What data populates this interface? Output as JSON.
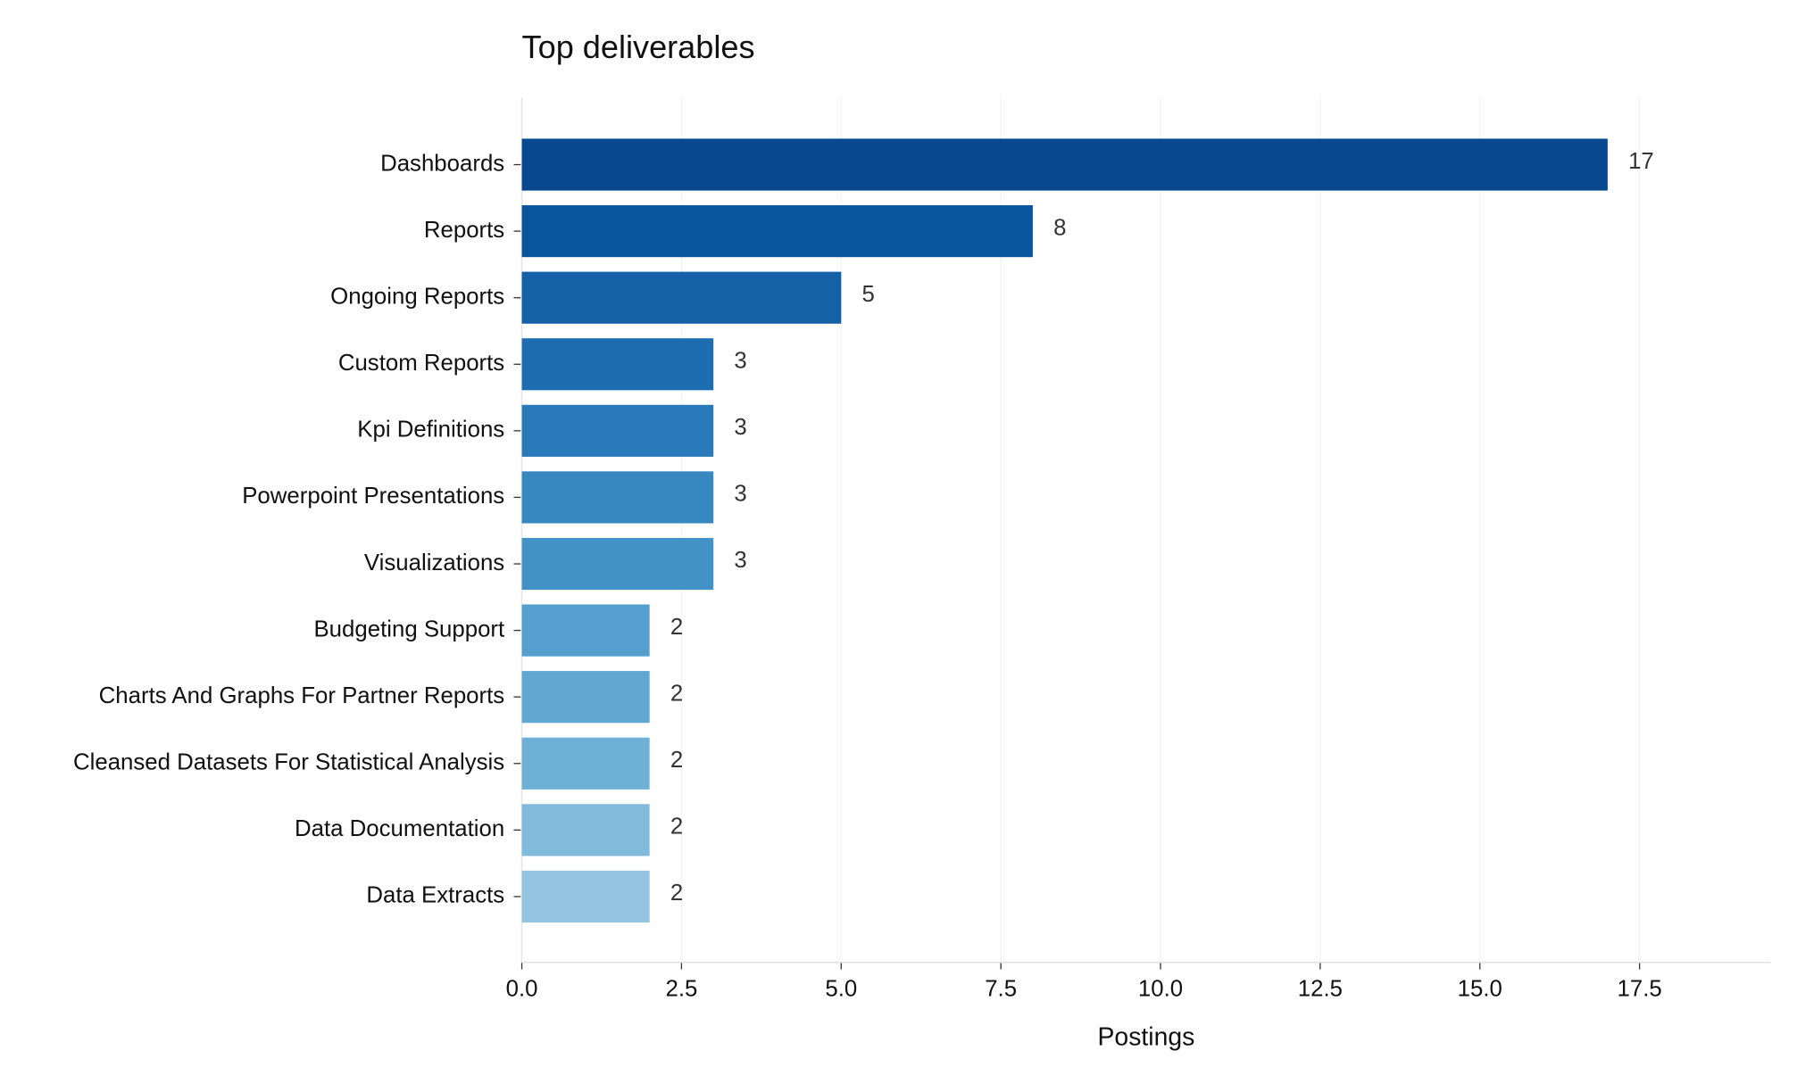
{
  "chart_data": {
    "type": "bar",
    "orientation": "horizontal",
    "title": "Top deliverables",
    "xlabel": "Postings",
    "categories": [
      "Dashboards",
      "Reports",
      "Ongoing Reports",
      "Custom Reports",
      "Kpi Definitions",
      "Powerpoint Presentations",
      "Visualizations",
      "Budgeting Support",
      "Charts And Graphs For Partner Reports",
      "Cleansed Datasets For Statistical Analysis",
      "Data Documentation",
      "Data Extracts"
    ],
    "values": [
      17,
      8,
      5,
      3,
      3,
      3,
      3,
      2,
      2,
      2,
      2,
      2
    ],
    "colors": [
      "#08488e",
      "#0b559f",
      "#1461a8",
      "#1f6db1",
      "#2a7ab9",
      "#3787c0",
      "#4292c6",
      "#549fcd",
      "#60a7d2",
      "#6fb0d7",
      "#81badb",
      "#94c4df"
    ],
    "xlim": [
      0,
      19.55
    ],
    "xticks": [
      {
        "value": 0,
        "label": "0.0"
      },
      2.5,
      {
        "value": 5,
        "label": "5.0"
      },
      7.5,
      {
        "value": 10,
        "label": "10.0"
      },
      12.5,
      {
        "value": 15,
        "label": "15.0"
      },
      17.5
    ],
    "grid": true
  }
}
